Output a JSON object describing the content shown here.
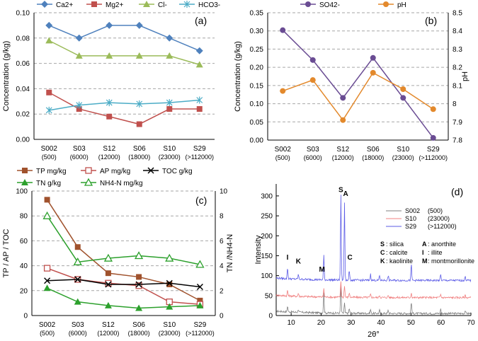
{
  "categories": [
    {
      "code": "S002",
      "sub": "(500)"
    },
    {
      "code": "S03",
      "sub": "(6000)"
    },
    {
      "code": "S12",
      "sub": "(12000)"
    },
    {
      "code": "S06",
      "sub": "(18000)"
    },
    {
      "code": "S10",
      "sub": "(23000)"
    },
    {
      "code": "S29",
      "sub": "(>112000)"
    }
  ],
  "chart_data": [
    {
      "panel": "(a)",
      "type": "line",
      "ylabel": "Concentration (g/kg)",
      "ylim": [
        0,
        0.1
      ],
      "yticks": [
        "0.00",
        "0.02",
        "0.04",
        "0.06",
        "0.08",
        "0.10"
      ],
      "grid": true,
      "legend_position": "top",
      "series": [
        {
          "name": "Ca2+",
          "color": "#4f81bd",
          "marker": "diamond",
          "values": [
            0.09,
            0.08,
            0.09,
            0.09,
            0.08,
            0.07
          ]
        },
        {
          "name": "Mg2+",
          "color": "#c0504d",
          "marker": "square",
          "values": [
            0.037,
            0.024,
            0.018,
            0.012,
            0.024,
            0.024
          ]
        },
        {
          "name": "Cl-",
          "color": "#9bbb59",
          "marker": "triangle",
          "values": [
            0.078,
            0.066,
            0.066,
            0.066,
            0.066,
            0.059
          ]
        },
        {
          "name": "HCO3-",
          "color": "#4bacc6",
          "marker": "star",
          "values": [
            0.023,
            0.027,
            0.029,
            0.028,
            0.029,
            0.031
          ]
        }
      ]
    },
    {
      "panel": "(b)",
      "type": "line",
      "ylabel": "Concentration (g/kg)",
      "ylabel_right": "pH",
      "ylim": [
        0,
        0.35
      ],
      "ylim_right": [
        7.8,
        8.5
      ],
      "yticks": [
        "0.00",
        "0.05",
        "0.10",
        "0.15",
        "0.20",
        "0.25",
        "0.30",
        "0.35"
      ],
      "yticks_right": [
        "7.8",
        "7.9",
        "8",
        "8.1",
        "8.2",
        "8.3",
        "8.4",
        "8.5"
      ],
      "grid": true,
      "legend_position": "top",
      "series": [
        {
          "name": "SO42-",
          "color": "#6a4c93",
          "marker": "circle",
          "axis": "left",
          "values": [
            0.302,
            0.22,
            0.116,
            0.226,
            0.116,
            0.006
          ]
        },
        {
          "name": "pH",
          "color": "#e3892c",
          "marker": "circle",
          "axis": "right",
          "values": [
            8.07,
            8.13,
            7.91,
            8.17,
            8.08,
            7.97
          ]
        }
      ]
    },
    {
      "panel": "(c)",
      "type": "line",
      "ylabel": "TP / AP / TOC",
      "ylabel_right": "TN /NH4-N",
      "ylim": [
        0,
        100
      ],
      "ylim_right": [
        0,
        10
      ],
      "yticks": [
        "0",
        "20",
        "40",
        "60",
        "80",
        "100"
      ],
      "yticks_right": [
        "0",
        "2",
        "4",
        "6",
        "8",
        "10"
      ],
      "grid": true,
      "legend_position": "top",
      "series": [
        {
          "name": "TP mg/kg",
          "color": "#a0522d",
          "marker": "square",
          "axis": "left",
          "values": [
            93,
            55,
            34,
            31,
            25,
            12
          ]
        },
        {
          "name": "AP mg/kg",
          "color": "#c0504d",
          "marker": "square-open",
          "axis": "left",
          "values": [
            38,
            29,
            26,
            24,
            11,
            9
          ]
        },
        {
          "name": "TOC g/kg",
          "color": "#000000",
          "marker": "x",
          "axis": "left",
          "values": [
            28,
            29,
            25,
            25,
            26,
            23
          ]
        },
        {
          "name": "TN g/kg",
          "color": "#2ca02c",
          "marker": "triangle",
          "axis": "right",
          "values": [
            2.2,
            1.1,
            0.8,
            0.6,
            0.7,
            0.8
          ]
        },
        {
          "name": "NH4-N mg/kg",
          "color": "#2ca02c",
          "marker": "triangle-open",
          "axis": "right",
          "values": [
            8.0,
            4.3,
            4.6,
            4.8,
            4.6,
            4.1
          ]
        }
      ]
    },
    {
      "panel": "(d)",
      "type": "line",
      "xlabel": "2θ°",
      "ylabel": "Intensity",
      "xlim": [
        5,
        70
      ],
      "ylim": [
        0,
        330
      ],
      "xticks": [
        "10",
        "20",
        "30",
        "40",
        "50",
        "60",
        "70"
      ],
      "yticks": [
        "0",
        "50",
        "100",
        "150",
        "200",
        "250",
        "300"
      ],
      "grid": false,
      "legend_position": "center-right",
      "series": [
        {
          "name": "S002",
          "sub": "(500)",
          "color": "#7f7f7f",
          "offset": 5,
          "peaks": [
            [
              8.8,
              15
            ],
            [
              12.4,
              8
            ],
            [
              20.9,
              50
            ],
            [
              26.6,
              70
            ],
            [
              27.8,
              25
            ],
            [
              29.4,
              12
            ],
            [
              36.5,
              10
            ],
            [
              39.5,
              8
            ],
            [
              42.4,
              8
            ],
            [
              50.1,
              30
            ],
            [
              59.9,
              12
            ],
            [
              68.1,
              8
            ]
          ]
        },
        {
          "name": "S10",
          "sub": "(23000)",
          "color": "#f08080",
          "offset": 45,
          "peaks": [
            [
              8.8,
              14
            ],
            [
              12.4,
              8
            ],
            [
              20.9,
              20
            ],
            [
              26.6,
              40
            ],
            [
              27.8,
              30
            ],
            [
              29.4,
              12
            ],
            [
              36.5,
              8
            ],
            [
              39.5,
              6
            ],
            [
              42.4,
              6
            ],
            [
              50.1,
              12
            ],
            [
              59.9,
              8
            ],
            [
              68.1,
              6
            ]
          ]
        },
        {
          "name": "S29",
          "sub": "(>112000)",
          "color": "#5b5be6",
          "offset": 88,
          "peaks": [
            [
              8.8,
              28
            ],
            [
              12.4,
              12
            ],
            [
              20.9,
              60
            ],
            [
              26.6,
              212
            ],
            [
              27.8,
              195
            ],
            [
              29.4,
              25
            ],
            [
              36.5,
              15
            ],
            [
              39.5,
              12
            ],
            [
              42.4,
              12
            ],
            [
              50.1,
              40
            ],
            [
              59.9,
              15
            ],
            [
              68.1,
              12
            ]
          ]
        }
      ],
      "peak_labels": [
        {
          "text": "S",
          "x": 26.6,
          "y": 310
        },
        {
          "text": "A",
          "x": 28.2,
          "y": 300
        },
        {
          "text": "I",
          "x": 8.8,
          "y": 140
        },
        {
          "text": "K",
          "x": 12.4,
          "y": 130
        },
        {
          "text": "M",
          "x": 20.3,
          "y": 110
        },
        {
          "text": "C",
          "x": 29.6,
          "y": 140
        }
      ],
      "mineral_key": [
        [
          {
            "code": "S",
            "name": ": silica"
          },
          {
            "code": "A",
            "name": ": anorthite"
          }
        ],
        [
          {
            "code": "C",
            "name": ": calcite"
          },
          {
            "code": "I",
            "name": ":  illite"
          }
        ],
        [
          {
            "code": "K",
            "name": ": kaolinite"
          },
          {
            "code": "M",
            "name": ": montmorillonite"
          }
        ]
      ]
    }
  ]
}
